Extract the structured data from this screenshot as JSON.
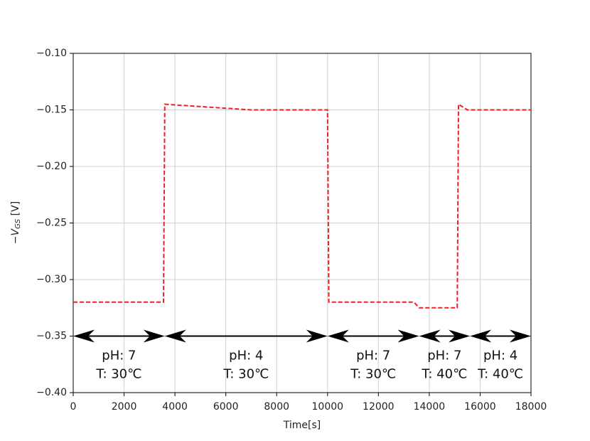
{
  "chart_data": {
    "type": "line",
    "xlabel": "Time[s]",
    "ylabel": [
      "−V",
      "GS",
      " [V]"
    ],
    "x": [
      0,
      3550,
      3600,
      7000,
      10000,
      10050,
      13400,
      13600,
      15100,
      15150,
      15500,
      18000
    ],
    "values": [
      -0.32,
      -0.32,
      -0.145,
      -0.15,
      -0.15,
      -0.32,
      -0.32,
      -0.325,
      -0.325,
      -0.145,
      -0.15,
      -0.15
    ],
    "color": "#ee2020",
    "linestyle": "dashed",
    "xlim": [
      0,
      18000
    ],
    "xticks": [
      0,
      2000,
      4000,
      6000,
      8000,
      10000,
      12000,
      14000,
      16000,
      18000
    ],
    "ylim": [
      -0.4,
      -0.1
    ],
    "yticks": [
      {
        "value": -0.4,
        "label": "−0.40"
      },
      {
        "value": -0.35,
        "label": "−0.35"
      },
      {
        "value": -0.3,
        "label": "−0.30"
      },
      {
        "value": -0.25,
        "label": "−0.25"
      },
      {
        "value": -0.2,
        "label": "−0.20"
      },
      {
        "value": -0.15,
        "label": "−0.15"
      },
      {
        "value": -0.1,
        "label": "−0.10"
      }
    ],
    "grid": true,
    "annotations": [
      {
        "x": [
          0,
          3600
        ],
        "y": -0.35,
        "lines": [
          "pH: 7",
          "T: 30℃"
        ]
      },
      {
        "x": [
          3600,
          10000
        ],
        "y": -0.35,
        "lines": [
          "pH: 4",
          "T: 30℃"
        ]
      },
      {
        "x": [
          10000,
          13600
        ],
        "y": -0.35,
        "lines": [
          "pH: 7",
          "T: 30℃"
        ]
      },
      {
        "x": [
          13600,
          15600
        ],
        "y": -0.35,
        "lines": [
          "pH: 7",
          "T: 40℃"
        ]
      },
      {
        "x": [
          15600,
          18000
        ],
        "y": -0.35,
        "lines": [
          "pH: 4",
          "T: 40℃"
        ]
      }
    ]
  }
}
